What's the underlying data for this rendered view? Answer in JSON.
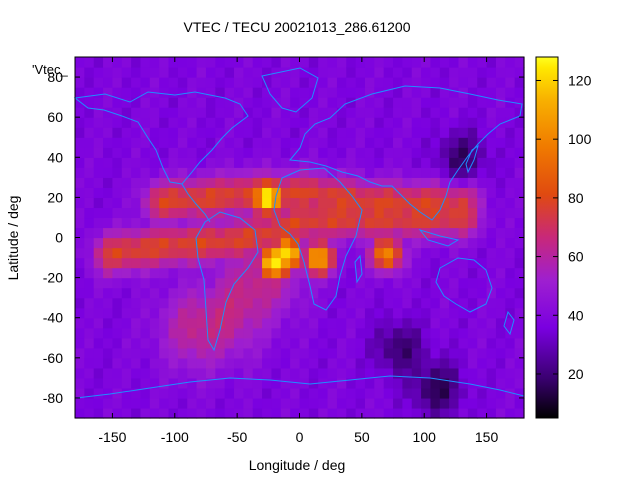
{
  "chart_data": {
    "type": "heatmap",
    "title": "VTEC / TECU 20021013_286.61200",
    "xlabel": "Longitude / deg",
    "ylabel": "Latitude / deg",
    "legend_key": "'Vtec_",
    "xlim": [
      -180,
      180
    ],
    "ylim": [
      -90,
      90
    ],
    "x_ticks": [
      -150,
      -100,
      -50,
      0,
      50,
      100,
      150
    ],
    "y_ticks": [
      -80,
      -60,
      -40,
      -20,
      0,
      20,
      40,
      60,
      80
    ],
    "colorbar": {
      "range": [
        5,
        128
      ],
      "ticks": [
        20,
        40,
        60,
        80,
        100,
        120
      ],
      "palette": [
        "#000000",
        "#3a0070",
        "#7a00e0",
        "#9e1fd0",
        "#c8287a",
        "#e04a10",
        "#f07a00",
        "#f8b000",
        "#ffe800",
        "#ffff20"
      ]
    },
    "overlay": {
      "name": "coastlines",
      "color": "#1e8fff"
    },
    "features": [
      {
        "name": "crest",
        "points": [
          [
            -150,
            -8
          ],
          [
            -120,
            -5
          ],
          [
            -90,
            -3
          ],
          [
            -60,
            -2
          ],
          [
            -40,
            0
          ],
          [
            -20,
            3
          ],
          [
            0,
            8
          ],
          [
            30,
            10
          ],
          [
            60,
            10
          ],
          [
            90,
            10
          ],
          [
            115,
            11
          ],
          [
            130,
            11
          ]
        ],
        "value": 70
      },
      {
        "name": "north crest",
        "points": [
          [
            -110,
            18
          ],
          [
            -70,
            20
          ],
          [
            -45,
            22
          ],
          [
            -20,
            22
          ],
          [
            10,
            22
          ],
          [
            50,
            18
          ],
          [
            90,
            17
          ],
          [
            130,
            19
          ]
        ],
        "value": 70
      },
      {
        "name": "southern extension",
        "points": [
          [
            -80,
            -45
          ],
          [
            -60,
            -40
          ],
          [
            -45,
            -30
          ],
          [
            -30,
            -20
          ]
        ],
        "value": 58
      },
      {
        "name": "peak",
        "points": [
          [
            -25,
            20
          ]
        ],
        "value": 120
      },
      {
        "name": "peak",
        "points": [
          [
            -20,
            -12
          ]
        ],
        "value": 118
      },
      {
        "name": "peak",
        "points": [
          [
            -10,
            -8
          ]
        ],
        "value": 112
      },
      {
        "name": "peak",
        "points": [
          [
            70,
            -8
          ]
        ],
        "value": 92
      },
      {
        "name": "peak",
        "points": [
          [
            15,
            -10
          ]
        ],
        "value": 100
      },
      {
        "name": "low",
        "points": [
          [
            80,
            -55
          ]
        ],
        "value": 18
      },
      {
        "name": "low",
        "points": [
          [
            130,
            40
          ]
        ],
        "value": 18
      },
      {
        "name": "low",
        "points": [
          [
            110,
            -75
          ]
        ],
        "value": 15
      }
    ]
  }
}
